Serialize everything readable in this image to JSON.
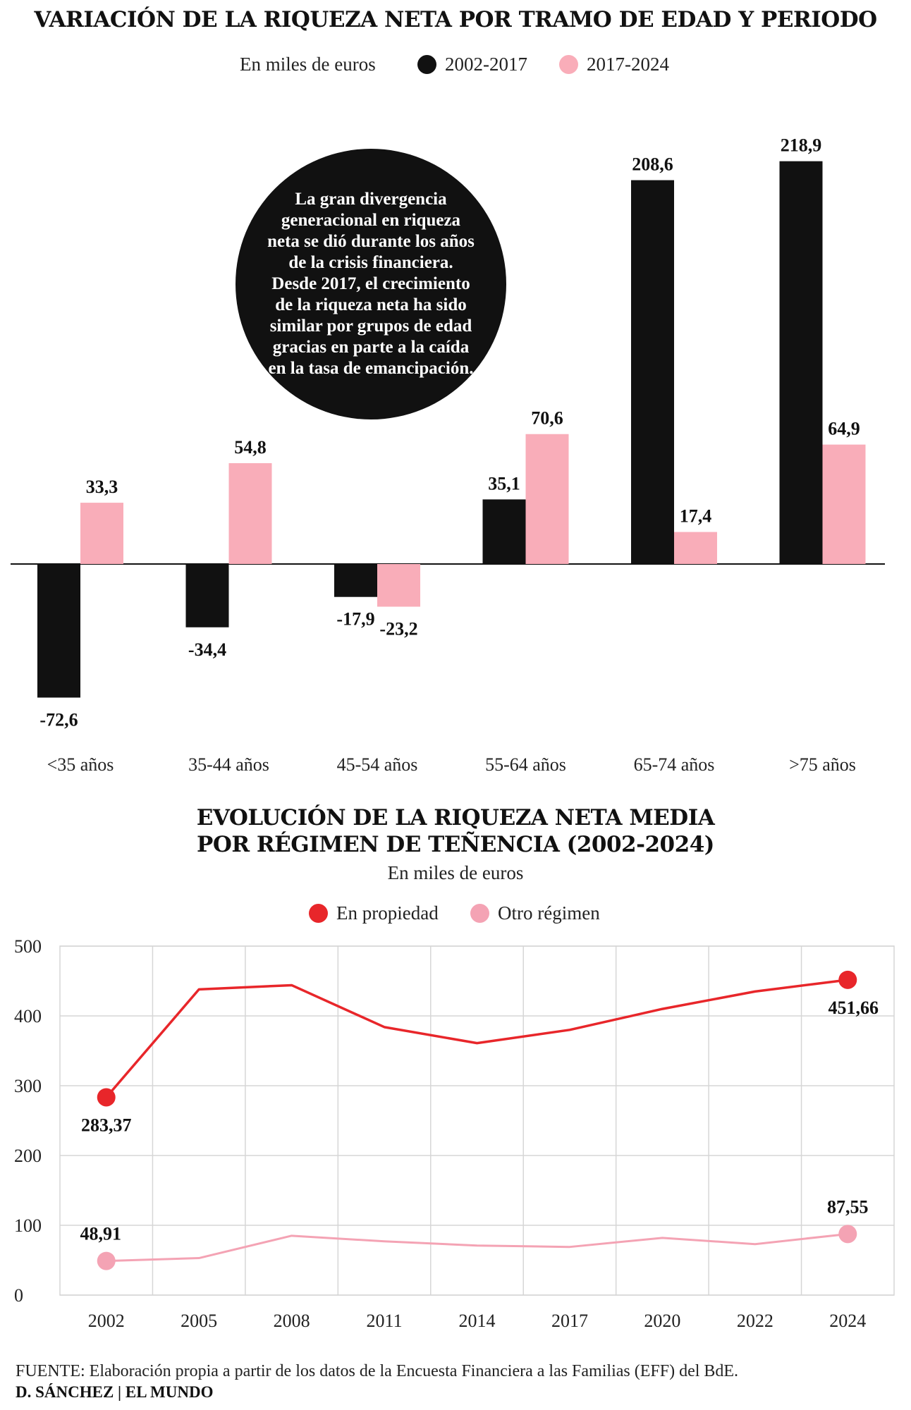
{
  "chart_data": [
    {
      "type": "bar",
      "title": "VARIACIÓN DE LA RIQUEZA NETA POR TRAMO DE EDAD Y PERIODO",
      "subtitle": "En  miles de euros",
      "categories": [
        "<35 años",
        "35-44 años",
        "45-54 años",
        "55-64 años",
        "65-74 años",
        ">75 años"
      ],
      "series": [
        {
          "name": "2002-2017",
          "color": "#111111",
          "values": [
            -72.6,
            -34.4,
            -17.9,
            35.1,
            208.6,
            218.9
          ],
          "labels": [
            "-72,6",
            "-34,4",
            "-17,9",
            "35,1",
            "208,6",
            "218,9"
          ]
        },
        {
          "name": "2017-2024",
          "color": "#f9adb9",
          "values": [
            33.3,
            54.8,
            -23.2,
            70.6,
            17.4,
            64.9
          ],
          "labels": [
            "33,3",
            "54,8",
            "-23,2",
            "70,6",
            "17,4",
            "64,9"
          ]
        }
      ],
      "ylim": [
        -80,
        230
      ],
      "annotation": "La gran divergencia generacional en riqueza neta se dió durante los años de la crisis financiera. Desde 2017, el crecimiento de la riqueza neta ha sido similar por grupos de edad gracias en parte a la caída en la tasa de emancipación."
    },
    {
      "type": "line",
      "title_line1": "EVOLUCIÓN DE LA RIQUEZA NETA MEDIA",
      "title_line2": "POR RÉGIMEN DE TEÑENCIA (2002-2024)",
      "subtitle": "En  miles de euros",
      "x": [
        "2002",
        "2005",
        "2008",
        "2011",
        "2014",
        "2017",
        "2020",
        "2022",
        "2024"
      ],
      "series": [
        {
          "name": "En propiedad",
          "color": "#e8262a",
          "values": [
            283.37,
            438,
            444,
            384,
            361,
            380,
            410,
            435,
            451.66
          ]
        },
        {
          "name": "Otro régimen",
          "color": "#f4a3b4",
          "values": [
            48.91,
            53,
            85,
            77,
            71,
            69,
            82,
            73,
            87.55
          ]
        }
      ],
      "endpoint_labels": {
        "propiedad_start": "283,37",
        "propiedad_end": "451,66",
        "otro_start": "48,91",
        "otro_end": "87,55"
      },
      "y_ticks": [
        "0",
        "100",
        "200",
        "300",
        "400",
        "500"
      ],
      "ylim": [
        0,
        500
      ],
      "grid": true
    }
  ],
  "footer": {
    "source": "FUENTE: Elaboración propia a partir de los datos de la Encuesta Financiera a las Familias (EFF) del BdE.",
    "credit": "D. SÁNCHEZ | EL MUNDO"
  }
}
